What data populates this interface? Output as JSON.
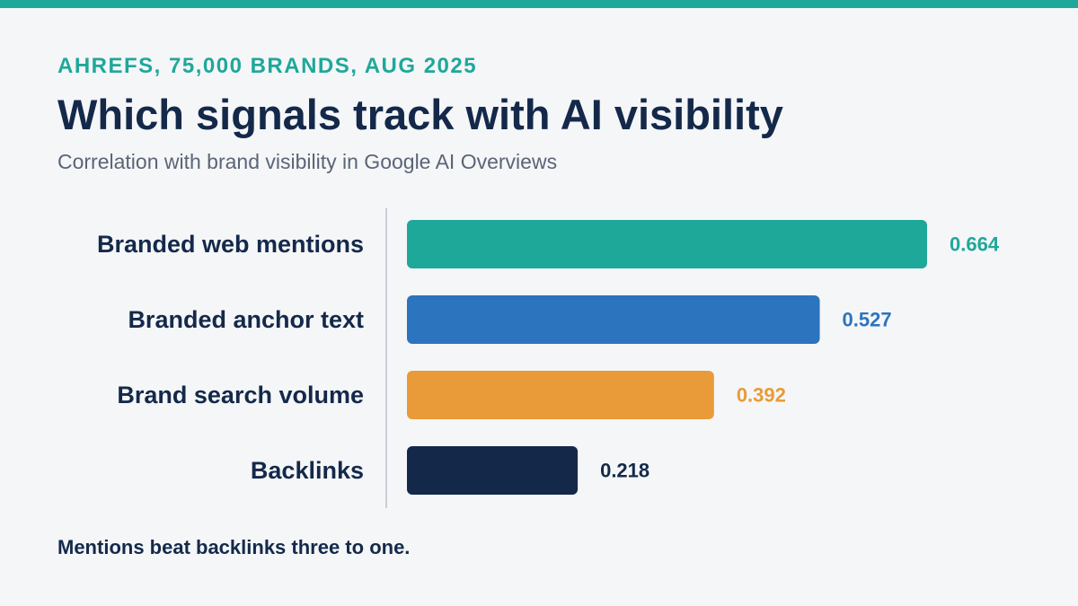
{
  "header": {
    "eyebrow": "AHREFS, 75,000 BRANDS, AUG 2025",
    "title": "Which signals track with AI visibility",
    "subtitle": "Correlation with brand visibility in Google AI Overviews"
  },
  "colors": {
    "accent": "#1ea89a",
    "title": "#14294a",
    "subtitle": "#5a6576",
    "axis": "#c9ced6"
  },
  "chart_data": {
    "type": "bar",
    "orientation": "horizontal",
    "title": "Which signals track with AI visibility",
    "subtitle": "Correlation with brand visibility in Google AI Overviews",
    "categories": [
      "Branded web mentions",
      "Branded anchor text",
      "Brand search volume",
      "Backlinks"
    ],
    "values": [
      0.664,
      0.527,
      0.392,
      0.218
    ],
    "value_labels": [
      "0.664",
      "0.527",
      "0.392",
      "0.218"
    ],
    "bar_colors": [
      "#1ea89a",
      "#2c74bd",
      "#e89b38",
      "#14294a"
    ],
    "xlim": [
      0,
      0.664
    ],
    "grid": false,
    "legend": "none"
  },
  "footnote": "Mentions beat backlinks three to one."
}
